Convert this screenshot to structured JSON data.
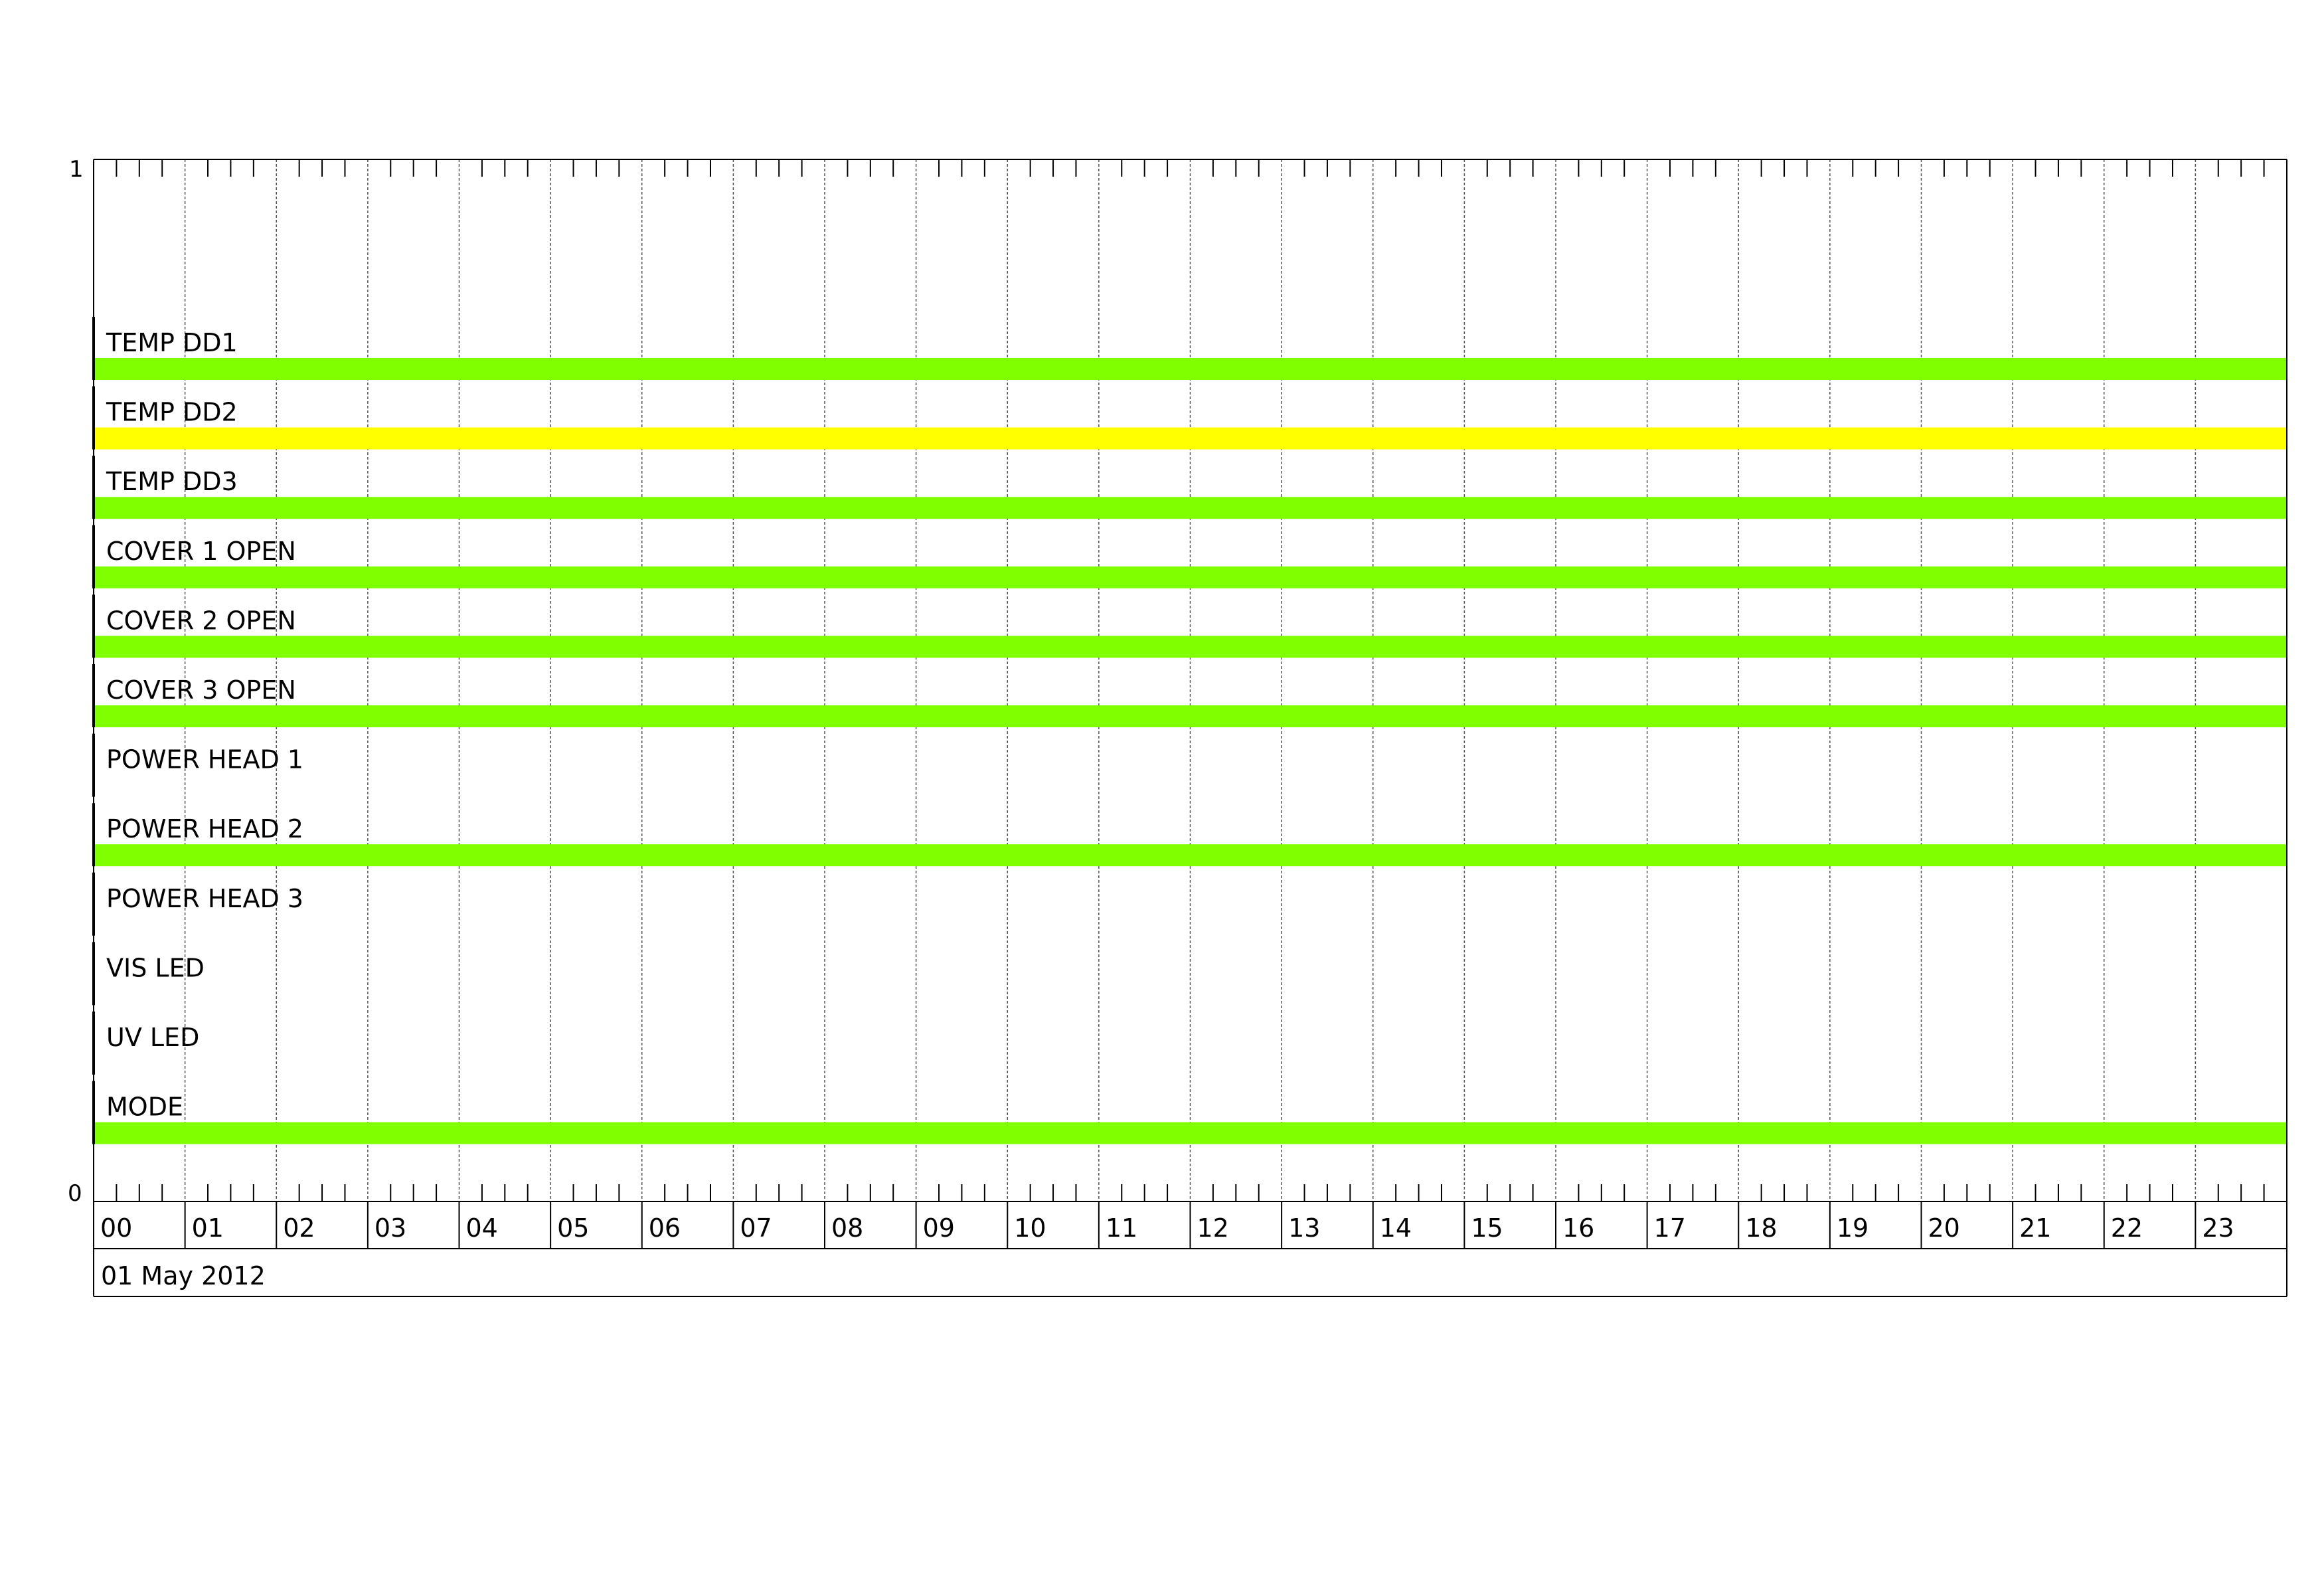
{
  "chart_data": {
    "type": "timeline",
    "y_axis": {
      "min_label": "0",
      "max_label": "1",
      "range": [
        0,
        1
      ]
    },
    "x_axis": {
      "hour_labels": [
        "00",
        "01",
        "02",
        "03",
        "04",
        "05",
        "06",
        "07",
        "08",
        "09",
        "10",
        "11",
        "12",
        "13",
        "14",
        "15",
        "16",
        "17",
        "18",
        "19",
        "20",
        "21",
        "22",
        "23"
      ],
      "date_label": "01 May 2012",
      "range_hours": [
        0,
        24
      ],
      "minor_ticks_per_hour": 4
    },
    "grid": true,
    "colors": {
      "ok": "#7fff00",
      "warning": "#ffff00"
    },
    "series": [
      {
        "name": "TEMP DD1",
        "segments": [
          {
            "start": 0,
            "end": 24,
            "state": "ok"
          }
        ]
      },
      {
        "name": "TEMP DD2",
        "segments": [
          {
            "start": 0,
            "end": 24,
            "state": "warning"
          }
        ]
      },
      {
        "name": "TEMP DD3",
        "segments": [
          {
            "start": 0,
            "end": 24,
            "state": "ok"
          }
        ]
      },
      {
        "name": "COVER 1 OPEN",
        "segments": [
          {
            "start": 0,
            "end": 24,
            "state": "ok"
          }
        ]
      },
      {
        "name": "COVER 2 OPEN",
        "segments": [
          {
            "start": 0,
            "end": 24,
            "state": "ok"
          }
        ]
      },
      {
        "name": "COVER 3 OPEN",
        "segments": [
          {
            "start": 0,
            "end": 24,
            "state": "ok"
          }
        ]
      },
      {
        "name": "POWER HEAD 1",
        "segments": []
      },
      {
        "name": "POWER HEAD 2",
        "segments": [
          {
            "start": 0,
            "end": 24,
            "state": "ok"
          }
        ]
      },
      {
        "name": "POWER HEAD 3",
        "segments": []
      },
      {
        "name": "VIS LED",
        "segments": []
      },
      {
        "name": "UV LED",
        "segments": []
      },
      {
        "name": "MODE",
        "segments": [
          {
            "start": 0,
            "end": 24,
            "state": "ok"
          }
        ]
      }
    ]
  }
}
